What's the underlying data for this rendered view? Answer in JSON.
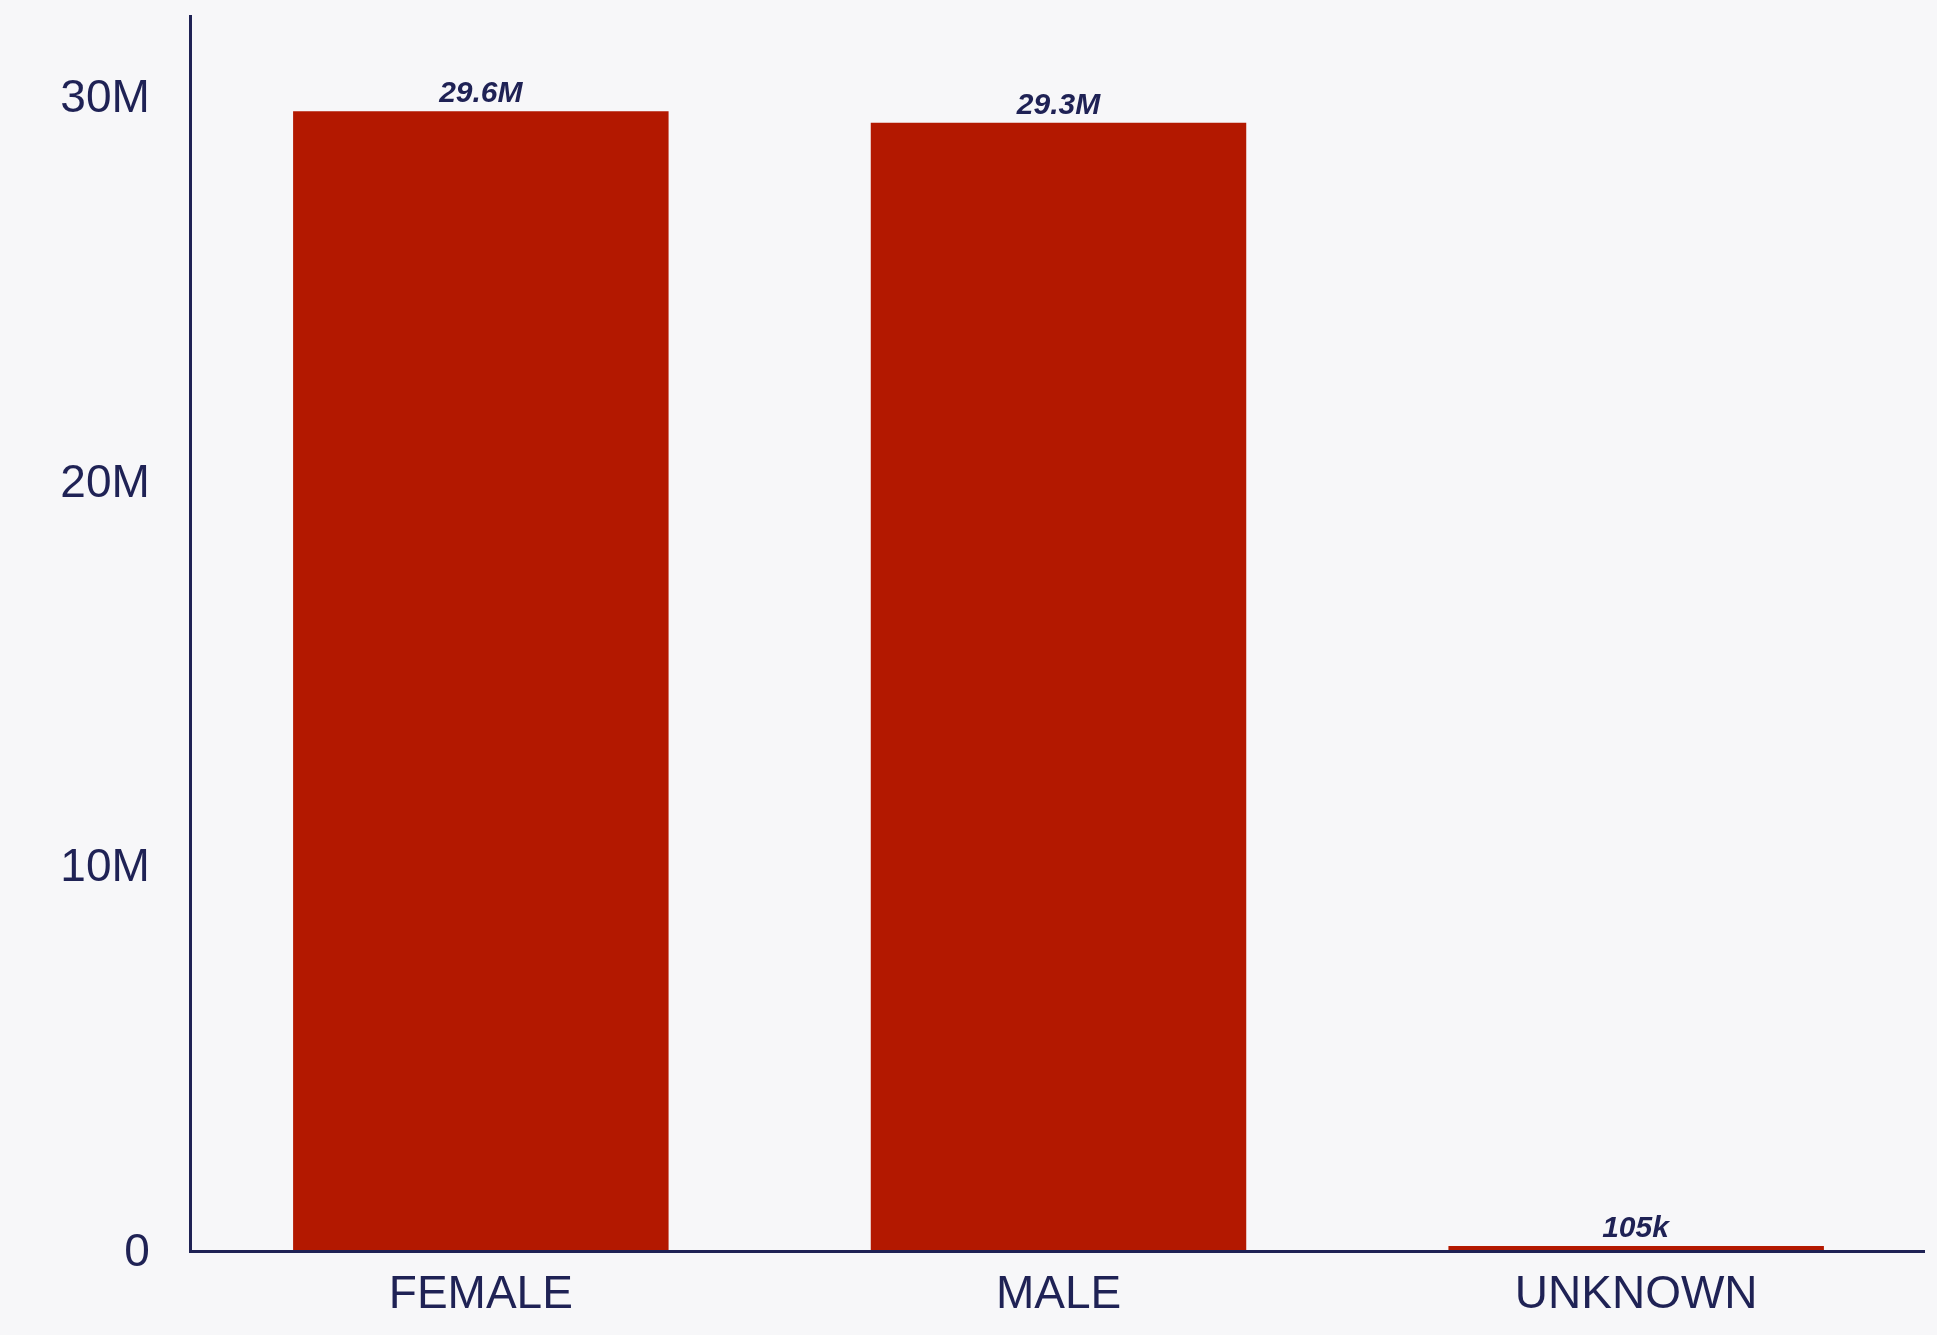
{
  "chart_data": {
    "type": "bar",
    "categories": [
      "FEMALE",
      "MALE",
      "UNKNOWN"
    ],
    "series": [
      {
        "color": "#b31800",
        "values": [
          29600000,
          29300000,
          105000
        ],
        "value_labels": [
          "29.6M",
          "29.3M",
          "105k"
        ]
      }
    ],
    "ylim": [
      0,
      32100000
    ],
    "yticks": [
      0,
      {
        "value": 10000000,
        "label": "10M"
      },
      {
        "value": 20000000,
        "label": "20M"
      },
      {
        "value": 30000000,
        "label": "30M"
      }
    ],
    "tick_labels": true
  }
}
